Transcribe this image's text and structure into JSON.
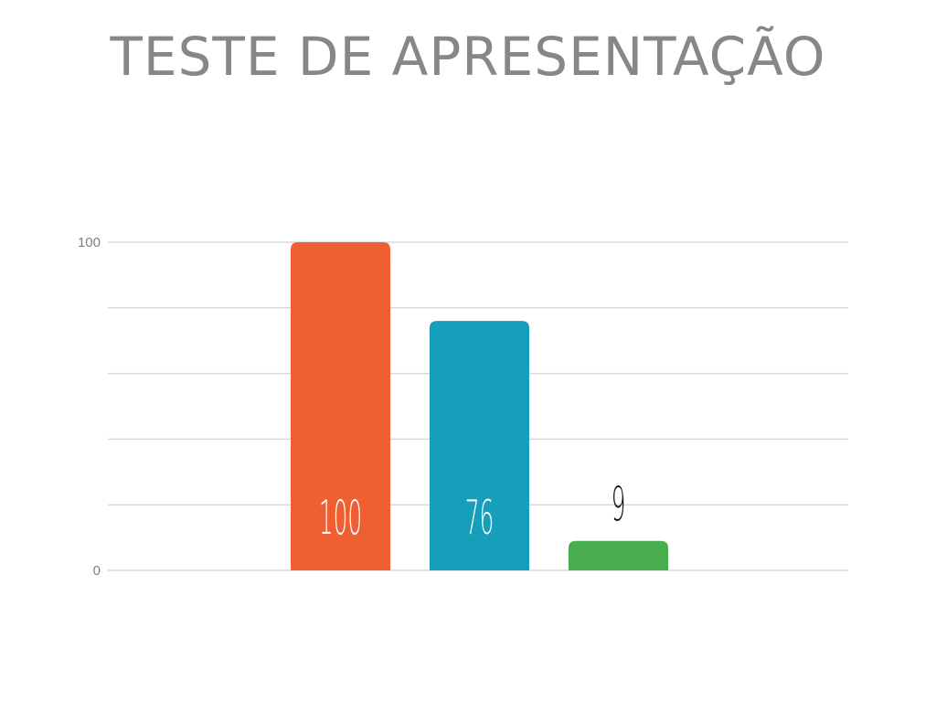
{
  "slide": {
    "title": "TESTE DE APRESENTAÇÃO"
  },
  "chart_data": {
    "type": "bar",
    "title": "",
    "xlabel": "",
    "ylabel": "",
    "categories": [
      "",
      "",
      ""
    ],
    "values": [
      100,
      76,
      9
    ],
    "data_labels": [
      "100",
      "76",
      "9"
    ],
    "ylim": [
      0,
      100
    ],
    "y_ticks_labeled": [
      "0",
      "100"
    ],
    "gridlines": true,
    "legend": "none",
    "colors": [
      "#f05f32",
      "#159fba",
      "#47ad4d"
    ],
    "label_colors": [
      "#ffffff",
      "#ffffff",
      "#111111"
    ],
    "gridline_color": "#d9d9d9",
    "tick_label_color": "#7f7f7f"
  }
}
